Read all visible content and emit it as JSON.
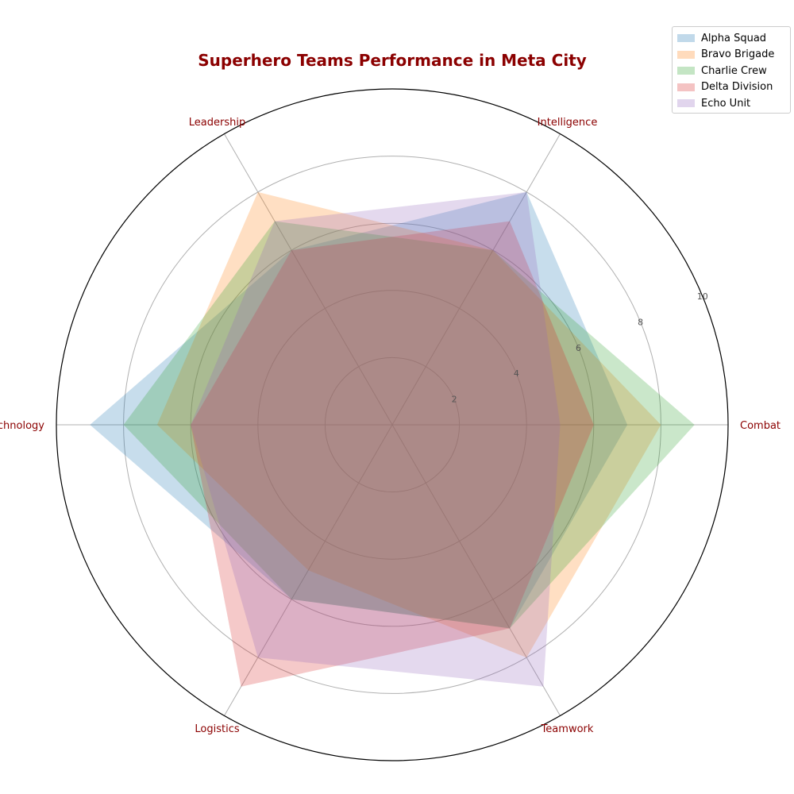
{
  "chart_data": {
    "type": "radar",
    "title": "Superhero Teams Performance in Meta City",
    "axes": [
      "Combat",
      "Intelligence",
      "Leadership",
      "Technology",
      "Logistics",
      "Teamwork"
    ],
    "rlim": [
      0,
      10
    ],
    "rticks": [
      2,
      4,
      6,
      8,
      10
    ],
    "grid": true,
    "legend_position": "top-right",
    "series": [
      {
        "name": "Alpha Squad",
        "color": "#1f77b4",
        "values": [
          7,
          8,
          6,
          9,
          6,
          7
        ]
      },
      {
        "name": "Bravo Brigade",
        "color": "#ff7f0e",
        "values": [
          8,
          6,
          8,
          7,
          5,
          8
        ]
      },
      {
        "name": "Charlie Crew",
        "color": "#2ca02c",
        "values": [
          9,
          6,
          7,
          8,
          6,
          7
        ]
      },
      {
        "name": "Delta Division",
        "color": "#d62728",
        "values": [
          6,
          7,
          6,
          6,
          9,
          7
        ]
      },
      {
        "name": "Echo Unit",
        "color": "#9467bd",
        "values": [
          5,
          8,
          7,
          6,
          8,
          9
        ]
      }
    ]
  }
}
